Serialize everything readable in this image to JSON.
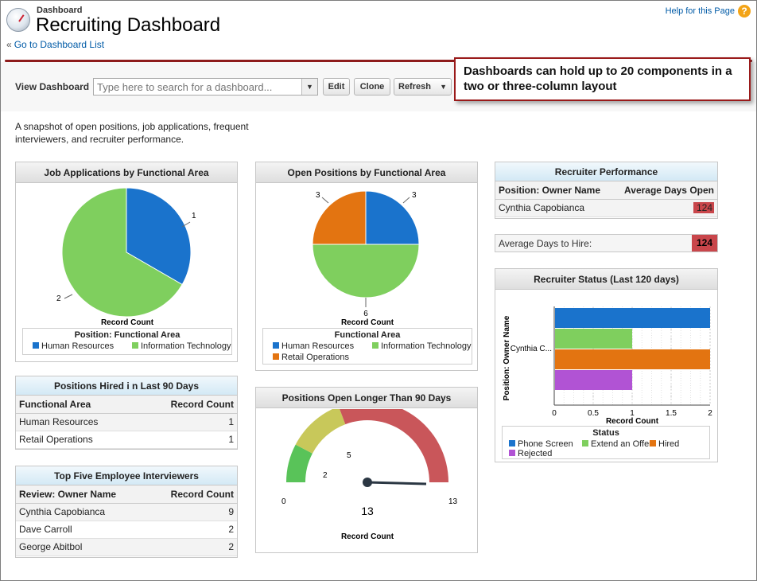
{
  "header": {
    "section_label": "Dashboard",
    "title": "Recruiting Dashboard",
    "back_link": "Go to Dashboard List",
    "help_link": "Help for this Page",
    "help_icon": "?"
  },
  "toolbar": {
    "view_label": "View Dashboard",
    "search_placeholder": "Type here to search for a dashboard...",
    "edit_label": "Edit",
    "clone_label": "Clone",
    "refresh_label": "Refresh"
  },
  "callout": {
    "text": "Dashboards can hold up to 20 components in a two or three-column layout"
  },
  "description": "A snapshot of open positions, job applications, frequent interviewers, and recruiter performance.",
  "colors": {
    "blue": "#1a73cc",
    "green": "#7fcf5e",
    "orange": "#e37411",
    "purple": "#b153d4",
    "red_cell": "#c9464b",
    "brand_rule": "#8e1b1b"
  },
  "job_applications": {
    "title": "Job Applications by Functional Area",
    "axis_label": "Record Count",
    "legend_title": "Position: Functional Area",
    "legend": [
      "Human Resources",
      "Information Technology"
    ],
    "slice_labels": [
      "1",
      "2"
    ]
  },
  "open_positions": {
    "title": "Open Positions by Functional Area",
    "axis_label": "Record Count",
    "legend_title": "Functional Area",
    "legend": [
      "Human Resources",
      "Information Technology",
      "Retail Operations"
    ],
    "slice_labels": [
      "3",
      "6",
      "3"
    ]
  },
  "positions_hired": {
    "title": "Positions Hired i n Last 90 Days",
    "columns": [
      "Functional Area",
      "Record Count"
    ],
    "rows": [
      {
        "name": "Human Resources",
        "count": "1"
      },
      {
        "name": "Retail Operations",
        "count": "1"
      }
    ]
  },
  "top_interviewers": {
    "title": "Top Five Employee Interviewers",
    "columns": [
      "Review: Owner Name",
      "Record Count"
    ],
    "rows": [
      {
        "name": "Cynthia Capobianca",
        "count": "9"
      },
      {
        "name": "Dave Carroll",
        "count": "2"
      },
      {
        "name": "George Abitbol",
        "count": "2"
      }
    ]
  },
  "positions_open_long": {
    "title": "Positions Open Longer Than 90 Days",
    "ticks": [
      "0",
      "2",
      "5",
      "13"
    ],
    "value": "13",
    "axis_label": "Record Count"
  },
  "recruiter_performance": {
    "title": "Recruiter Performance",
    "columns": [
      "Position: Owner Name",
      "Average Days Open"
    ],
    "row_name": "Cynthia Capobianca",
    "row_value": "124"
  },
  "avg_days": {
    "label": "Average Days to Hire:",
    "value": "124"
  },
  "recruiter_status": {
    "title": "Recruiter Status (Last 120 days)",
    "y_axis_label": "Position: Owner Name",
    "category_label": "Cynthia C...",
    "x_axis_label": "Record Count",
    "legend_title": "Status"
  },
  "chart_data": [
    {
      "type": "pie",
      "title": "Job Applications by Functional Area",
      "xlabel": "Record Count",
      "categories": [
        "Human Resources",
        "Information Technology"
      ],
      "values": [
        1,
        2
      ],
      "legend": "bottom"
    },
    {
      "type": "pie",
      "title": "Open Positions by Functional Area",
      "xlabel": "Record Count",
      "categories": [
        "Human Resources",
        "Information Technology",
        "Retail Operations"
      ],
      "values": [
        3,
        6,
        3
      ],
      "legend": "bottom"
    },
    {
      "type": "gauge",
      "title": "Positions Open Longer Than 90 Days",
      "xlabel": "Record Count",
      "range": [
        0,
        13
      ],
      "breakpoints": [
        2,
        5
      ],
      "value": 13
    },
    {
      "type": "bar",
      "orientation": "horizontal",
      "title": "Recruiter Status (Last 120 days)",
      "xlabel": "Record Count",
      "ylabel": "Position: Owner Name",
      "categories": [
        "Cynthia C..."
      ],
      "series": [
        {
          "name": "Phone Screen",
          "values": [
            2
          ]
        },
        {
          "name": "Extend an Offer",
          "values": [
            1
          ]
        },
        {
          "name": "Hired",
          "values": [
            2
          ]
        },
        {
          "name": "Rejected",
          "values": [
            1
          ]
        }
      ],
      "xlim": [
        0,
        2
      ],
      "xticks": [
        "0",
        "0.5",
        "1",
        "1.5",
        "2"
      ],
      "legend": "bottom"
    }
  ]
}
